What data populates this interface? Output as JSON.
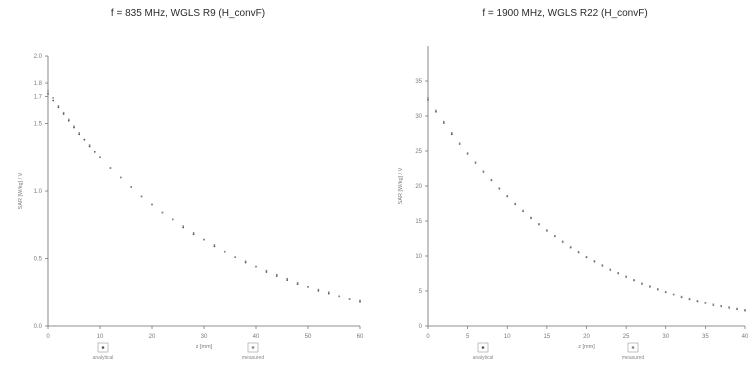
{
  "chart_data": [
    {
      "type": "scatter",
      "title": "f = 835 MHz, WGLS R9 (H_convF)",
      "xlabel": "z [mm]",
      "ylabel": "SAR [W/kg] / V",
      "xlim": [
        0,
        60
      ],
      "ylim": [
        0.0,
        2.0
      ],
      "x_ticks": [
        "0",
        "10",
        "20",
        "30",
        "40",
        "50",
        "60"
      ],
      "y_ticks": [
        "0.0",
        "0.5",
        "1.0",
        "1.5",
        "1.7",
        "1.8",
        "2.0"
      ],
      "legend": [
        "analytical",
        "measured"
      ],
      "series": [
        {
          "name": "analytical",
          "x": [
            0,
            1,
            2,
            3,
            4,
            5,
            6,
            7,
            8,
            9,
            10,
            12,
            14,
            16,
            18,
            20,
            22,
            24,
            26,
            28,
            30,
            32,
            34,
            36,
            38,
            40,
            42,
            44,
            46,
            48,
            50,
            52,
            54,
            56,
            58,
            60
          ],
          "y": [
            1.72,
            1.67,
            1.62,
            1.57,
            1.52,
            1.47,
            1.42,
            1.38,
            1.33,
            1.29,
            1.25,
            1.17,
            1.1,
            1.03,
            0.96,
            0.9,
            0.84,
            0.79,
            0.73,
            0.68,
            0.64,
            0.59,
            0.55,
            0.51,
            0.47,
            0.44,
            0.4,
            0.37,
            0.34,
            0.31,
            0.29,
            0.26,
            0.24,
            0.22,
            0.2,
            0.18
          ]
        },
        {
          "name": "measured",
          "x": [
            0,
            1,
            2,
            3,
            4,
            5,
            6,
            8,
            10,
            12,
            14,
            16,
            18,
            20,
            22,
            24,
            26,
            28,
            30,
            32,
            34,
            36,
            38,
            40,
            42,
            44,
            46,
            48,
            50,
            52,
            54,
            56,
            58,
            60
          ],
          "y": [
            1.74,
            1.69,
            1.63,
            1.58,
            1.53,
            1.48,
            1.43,
            1.34,
            1.25,
            1.17,
            1.1,
            1.03,
            0.96,
            0.9,
            0.84,
            0.79,
            0.74,
            0.69,
            0.64,
            0.6,
            0.55,
            0.51,
            0.48,
            0.44,
            0.41,
            0.38,
            0.35,
            0.32,
            0.29,
            0.27,
            0.25,
            0.22,
            0.2,
            0.19
          ]
        }
      ]
    },
    {
      "type": "scatter",
      "title": "f = 1900 MHz, WGLS R22 (H_convF)",
      "xlabel": "z [mm]",
      "ylabel": "SAR [W/kg] / V",
      "xlim": [
        0,
        40
      ],
      "ylim": [
        0,
        40
      ],
      "x_ticks": [
        "0",
        "5",
        "10",
        "15",
        "20",
        "25",
        "30",
        "35",
        "40"
      ],
      "y_ticks": [
        "0",
        "5",
        "10",
        "15",
        "20",
        "25",
        "30",
        "35"
      ],
      "legend": [
        "analytical",
        "measured"
      ],
      "series": [
        {
          "name": "analytical",
          "x": [
            0,
            1,
            2,
            3,
            4,
            5,
            6,
            7,
            8,
            9,
            10,
            11,
            12,
            13,
            14,
            15,
            16,
            17,
            18,
            19,
            20,
            21,
            22,
            23,
            24,
            25,
            26,
            27,
            28,
            29,
            30,
            31,
            32,
            33,
            34,
            35,
            36,
            37,
            38,
            39,
            40
          ],
          "y": [
            32.3,
            30.6,
            29.0,
            27.4,
            26.0,
            24.6,
            23.3,
            22.0,
            20.8,
            19.6,
            18.5,
            17.4,
            16.4,
            15.4,
            14.5,
            13.6,
            12.8,
            12.0,
            11.2,
            10.5,
            9.8,
            9.2,
            8.6,
            8.0,
            7.5,
            7.0,
            6.5,
            6.0,
            5.6,
            5.2,
            4.8,
            4.5,
            4.1,
            3.8,
            3.5,
            3.3,
            3.0,
            2.8,
            2.6,
            2.4,
            2.2
          ]
        },
        {
          "name": "measured",
          "x": [
            0,
            1,
            2,
            3,
            4,
            5,
            6,
            7,
            8,
            9,
            10,
            11,
            12,
            13,
            14,
            15,
            16,
            17,
            18,
            19,
            20,
            21,
            22,
            23,
            24,
            25,
            26,
            27,
            28,
            29,
            30,
            31,
            32,
            33,
            34,
            35,
            36,
            37,
            38,
            39,
            40
          ],
          "y": [
            32.6,
            30.8,
            29.2,
            27.6,
            26.1,
            24.7,
            23.4,
            22.1,
            20.9,
            19.7,
            18.6,
            17.5,
            16.5,
            15.5,
            14.6,
            13.7,
            12.9,
            12.1,
            11.3,
            10.6,
            9.9,
            9.3,
            8.7,
            8.1,
            7.6,
            7.1,
            6.6,
            6.1,
            5.7,
            5.3,
            4.9,
            4.5,
            4.2,
            3.9,
            3.6,
            3.3,
            3.1,
            2.9,
            2.7,
            2.5,
            2.3
          ]
        }
      ]
    }
  ],
  "colors": {
    "analytical": "#555555",
    "measured": "#8a8a8a",
    "axis": "#6a6a6a"
  }
}
